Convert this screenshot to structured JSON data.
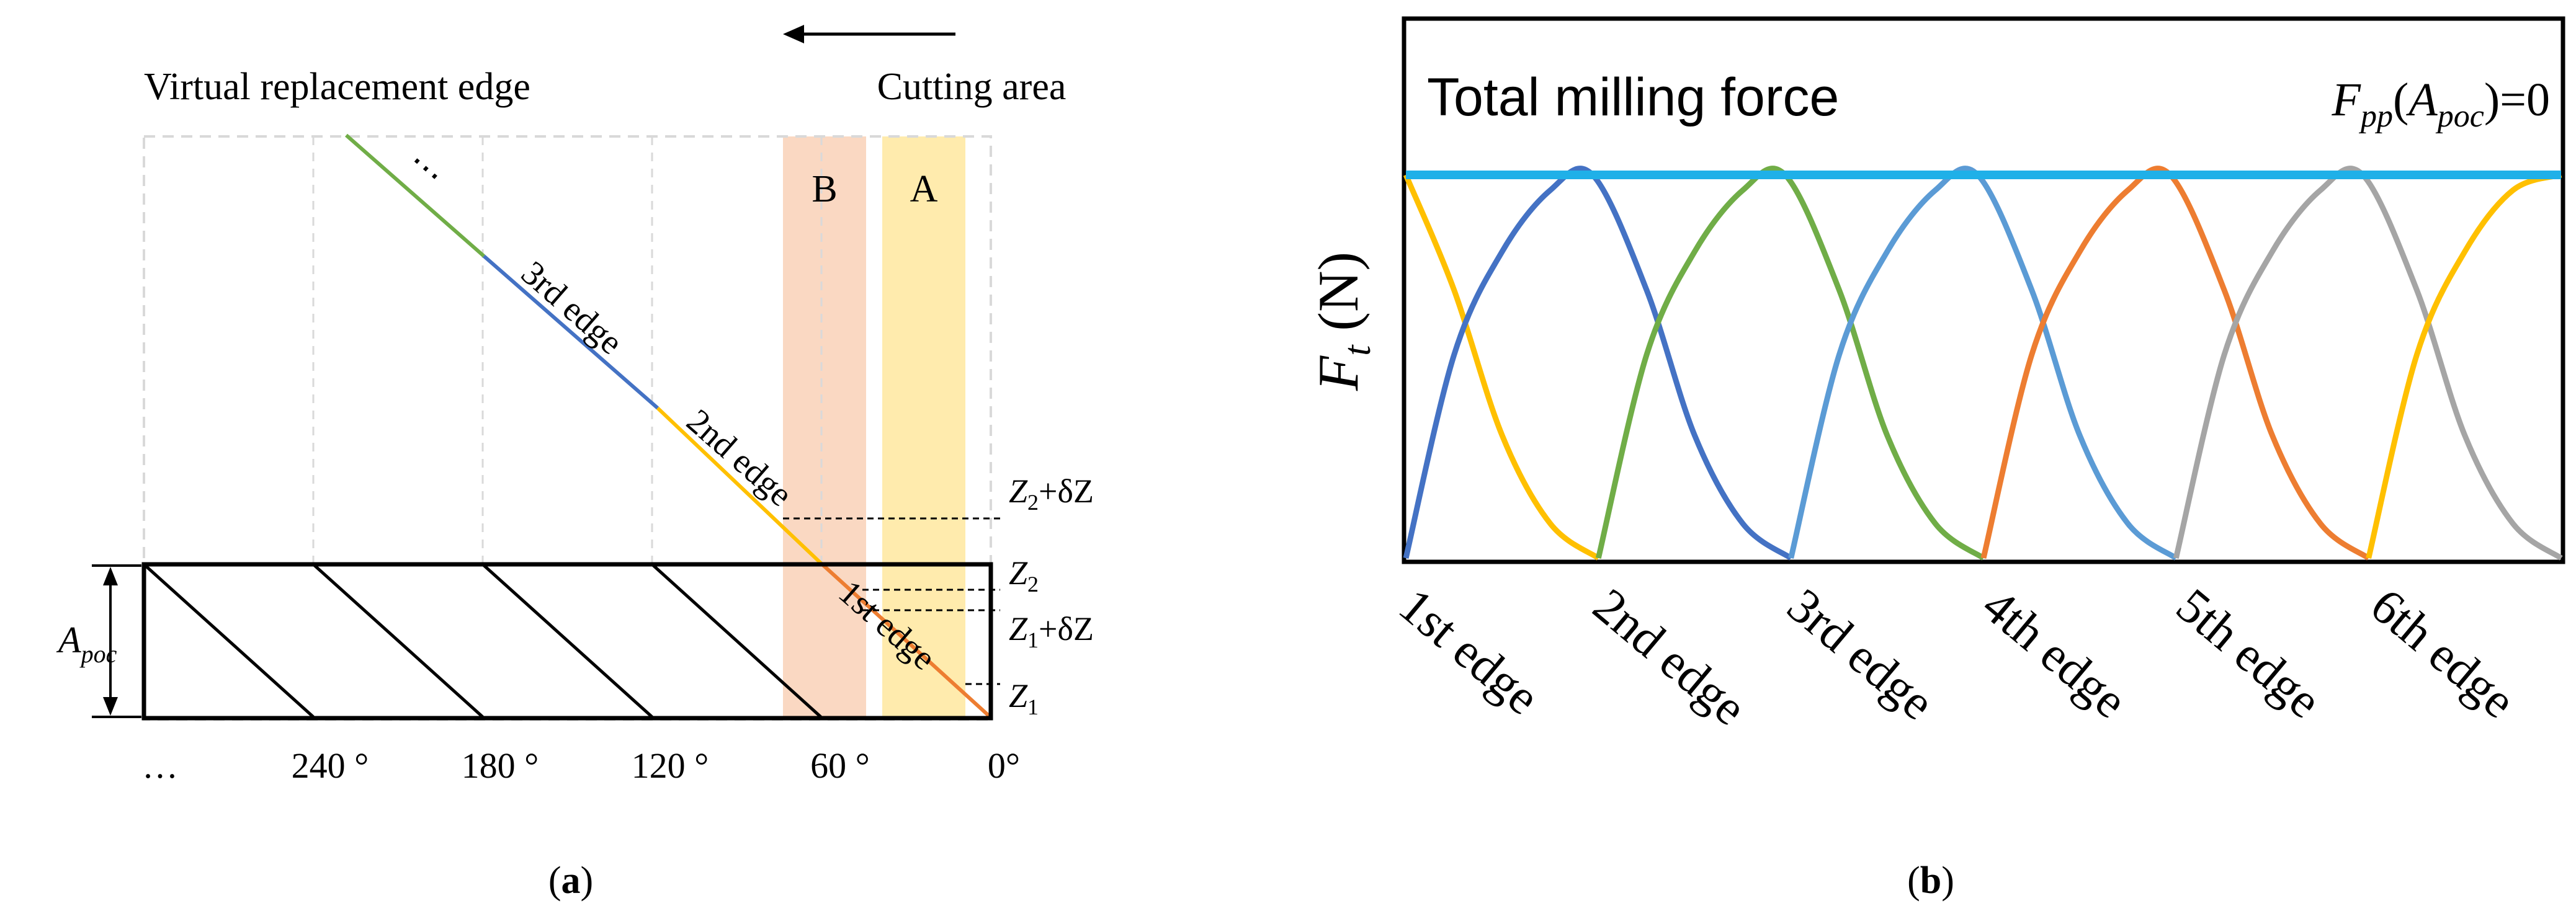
{
  "colors": {
    "edge1": "#ED7D31",
    "edge2": "#FFC000",
    "edge3": "#4472C4",
    "edge4": "#70AD47",
    "edge5": "#5B9BD5",
    "edge6": "#A5A5A5",
    "total": "#1FB0E8",
    "region_a": "#FFE699",
    "region_b": "#F8CBAD",
    "grid": "#D9D9D9"
  },
  "panel_a": {
    "title_left": "Virtual replacement edge",
    "title_right": "Cutting area",
    "ellipsis_top": "⋯",
    "region_a": "A",
    "region_b": "B",
    "edges": [
      {
        "n": "1",
        "suffix": "st",
        "word": " edge"
      },
      {
        "n": "2",
        "suffix": "nd",
        "word": " edge"
      },
      {
        "n": "3",
        "suffix": "rd",
        "word": " edge"
      }
    ],
    "apoc": {
      "base": "A",
      "sub": "poc"
    },
    "z_labels": {
      "z2_dz": {
        "base": "Z",
        "sub": "2",
        "tail": "+δZ"
      },
      "z2": {
        "base": "Z",
        "sub": "2",
        "tail": ""
      },
      "z1_dz": {
        "base": "Z",
        "sub": "1",
        "tail": "+δZ"
      },
      "z1": {
        "base": "Z",
        "sub": "1",
        "tail": ""
      }
    },
    "x_ticks": [
      "…",
      "240 °",
      "180 °",
      "120 °",
      "60 °",
      "0°"
    ],
    "caption": {
      "open": "(",
      "letter": "a",
      "close": ")"
    }
  },
  "panel_b": {
    "title": "Total milling force",
    "fpp": {
      "base": "F",
      "sub": "pp",
      "open": "(",
      "arg_base": "A",
      "arg_sub": "poc",
      "close": ")=0"
    },
    "ylabel": {
      "base": "F",
      "sub": "t",
      "unit": " (N)"
    },
    "caption": {
      "open": "(",
      "letter": "b",
      "close": ")"
    }
  },
  "chart_data": {
    "type": "line",
    "title": "Total milling force",
    "xlabel": "",
    "ylabel": "F_t (N)",
    "categories": [
      "1st edge",
      "2nd edge",
      "3rd edge",
      "4th edge",
      "5th edge",
      "6th edge"
    ],
    "x_range": [
      0,
      6
    ],
    "y_range": [
      0,
      1
    ],
    "series": [
      {
        "name": "total",
        "color_key": "total",
        "points": [
          [
            0,
            1
          ],
          [
            6,
            1
          ]
        ]
      },
      {
        "name": "edge-yellow-start",
        "color_key": "edge2",
        "points": [
          [
            0,
            1
          ],
          [
            0.25,
            0.7
          ],
          [
            0.5,
            0.32
          ],
          [
            0.75,
            0.09
          ],
          [
            1,
            0
          ]
        ]
      },
      {
        "name": "edge-blue-dark",
        "color_key": "edge3",
        "points": [
          [
            0,
            0
          ],
          [
            0.25,
            0.53
          ],
          [
            0.5,
            0.8
          ],
          [
            0.75,
            0.96
          ],
          [
            0.97,
            1
          ],
          [
            1.25,
            0.7
          ],
          [
            1.5,
            0.32
          ],
          [
            1.75,
            0.09
          ],
          [
            2,
            0
          ]
        ]
      },
      {
        "name": "edge-green",
        "color_key": "edge4",
        "points": [
          [
            1,
            0
          ],
          [
            1.25,
            0.53
          ],
          [
            1.5,
            0.8
          ],
          [
            1.75,
            0.96
          ],
          [
            1.97,
            1
          ],
          [
            2.25,
            0.7
          ],
          [
            2.5,
            0.32
          ],
          [
            2.75,
            0.09
          ],
          [
            3,
            0
          ]
        ]
      },
      {
        "name": "edge-blue-light",
        "color_key": "edge5",
        "points": [
          [
            2,
            0
          ],
          [
            2.25,
            0.53
          ],
          [
            2.5,
            0.8
          ],
          [
            2.75,
            0.96
          ],
          [
            2.97,
            1
          ],
          [
            3.25,
            0.7
          ],
          [
            3.5,
            0.32
          ],
          [
            3.75,
            0.09
          ],
          [
            4,
            0
          ]
        ]
      },
      {
        "name": "edge-orange",
        "color_key": "edge1",
        "points": [
          [
            3,
            0
          ],
          [
            3.25,
            0.53
          ],
          [
            3.5,
            0.8
          ],
          [
            3.75,
            0.96
          ],
          [
            3.97,
            1
          ],
          [
            4.25,
            0.7
          ],
          [
            4.5,
            0.32
          ],
          [
            4.75,
            0.09
          ],
          [
            5,
            0
          ]
        ]
      },
      {
        "name": "edge-gray",
        "color_key": "edge6",
        "points": [
          [
            4,
            0
          ],
          [
            4.25,
            0.53
          ],
          [
            4.5,
            0.8
          ],
          [
            4.75,
            0.96
          ],
          [
            4.97,
            1
          ],
          [
            5.25,
            0.7
          ],
          [
            5.5,
            0.32
          ],
          [
            5.75,
            0.09
          ],
          [
            6,
            0
          ]
        ]
      },
      {
        "name": "edge-yellow-end",
        "color_key": "edge2",
        "points": [
          [
            5,
            0
          ],
          [
            5.25,
            0.53
          ],
          [
            5.5,
            0.8
          ],
          [
            5.75,
            0.96
          ],
          [
            6,
            1
          ]
        ]
      }
    ]
  }
}
